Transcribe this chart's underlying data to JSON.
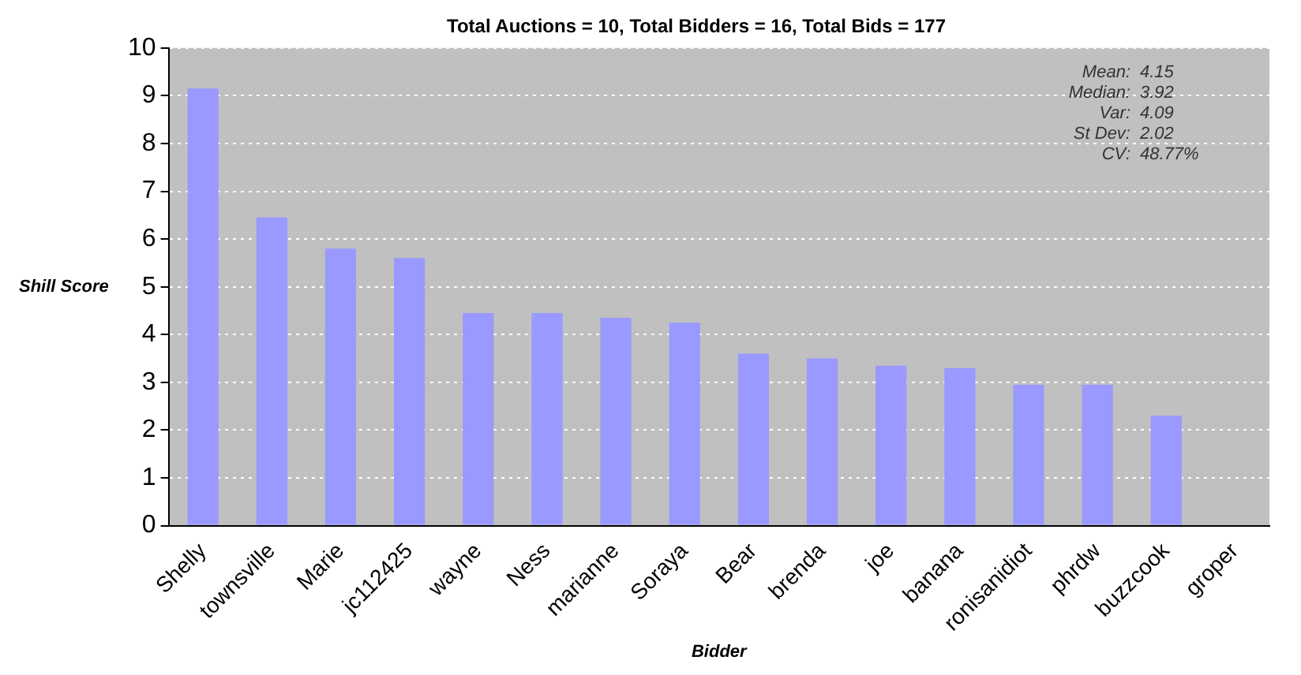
{
  "chart_data": {
    "type": "bar",
    "title": "Total Auctions = 10, Total Bidders = 16, Total Bids = 177",
    "xlabel": "Bidder",
    "ylabel": "Shill Score",
    "categories": [
      "Shelly",
      "townsville",
      "Marie",
      "jc112425",
      "wayne",
      "Ness",
      "marianne",
      "Soraya",
      "Bear",
      "brenda",
      "joe",
      "banana",
      "ronisanidiot",
      "phrdw",
      "buzzcook",
      "groper"
    ],
    "values": [
      9.15,
      6.45,
      5.8,
      5.6,
      4.45,
      4.45,
      4.35,
      4.25,
      3.6,
      3.5,
      3.35,
      3.3,
      2.95,
      2.95,
      2.3,
      0
    ],
    "color": "#9999ff",
    "ylim": [
      0,
      10
    ],
    "yticks": [
      0,
      1,
      2,
      3,
      4,
      5,
      6,
      7,
      8,
      9,
      10
    ],
    "grid": "y",
    "legend": false,
    "annotations": [
      "Mean: 4.15",
      "Median: 3.92",
      "Var: 4.09",
      "St Dev: 2.02",
      "CV: 48.77%"
    ]
  }
}
